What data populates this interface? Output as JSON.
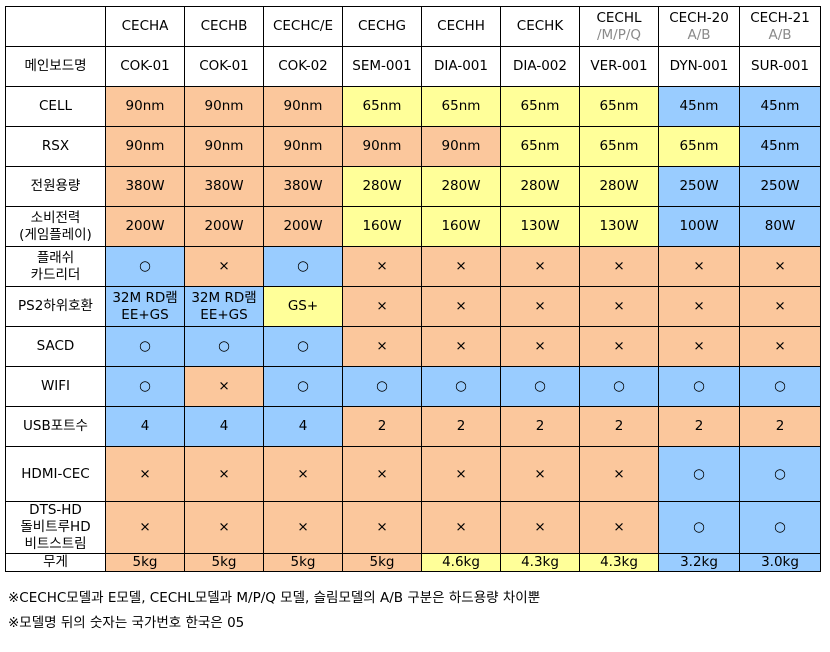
{
  "header": {
    "models": [
      {
        "name": "CECHA",
        "sub": ""
      },
      {
        "name": "CECHB",
        "sub": ""
      },
      {
        "name": "CECHC/E",
        "sub": ""
      },
      {
        "name": "CECHG",
        "sub": ""
      },
      {
        "name": "CECHH",
        "sub": ""
      },
      {
        "name": "CECHK",
        "sub": ""
      },
      {
        "name": "CECHL",
        "sub": "/M/P/Q"
      },
      {
        "name": "CECH-20",
        "sub": "A/B"
      },
      {
        "name": "CECH-21",
        "sub": "A/B"
      }
    ]
  },
  "rows": [
    {
      "label": [
        "메인보드명"
      ],
      "cells": [
        {
          "text": [
            "COK-01"
          ],
          "color": "w"
        },
        {
          "text": [
            "COK-01"
          ],
          "color": "w"
        },
        {
          "text": [
            "COK-02"
          ],
          "color": "w"
        },
        {
          "text": [
            "SEM-001"
          ],
          "color": "w"
        },
        {
          "text": [
            "DIA-001"
          ],
          "color": "w"
        },
        {
          "text": [
            "DIA-002"
          ],
          "color": "w"
        },
        {
          "text": [
            "VER-001"
          ],
          "color": "w"
        },
        {
          "text": [
            "DYN-001"
          ],
          "color": "w"
        },
        {
          "text": [
            "SUR-001"
          ],
          "color": "w"
        }
      ]
    },
    {
      "label": [
        "CELL"
      ],
      "cells": [
        {
          "text": [
            "90nm"
          ],
          "color": "o"
        },
        {
          "text": [
            "90nm"
          ],
          "color": "o"
        },
        {
          "text": [
            "90nm"
          ],
          "color": "o"
        },
        {
          "text": [
            "65nm"
          ],
          "color": "y"
        },
        {
          "text": [
            "65nm"
          ],
          "color": "y"
        },
        {
          "text": [
            "65nm"
          ],
          "color": "y"
        },
        {
          "text": [
            "65nm"
          ],
          "color": "y"
        },
        {
          "text": [
            "45nm"
          ],
          "color": "b"
        },
        {
          "text": [
            "45nm"
          ],
          "color": "b"
        }
      ]
    },
    {
      "label": [
        "RSX"
      ],
      "cells": [
        {
          "text": [
            "90nm"
          ],
          "color": "o"
        },
        {
          "text": [
            "90nm"
          ],
          "color": "o"
        },
        {
          "text": [
            "90nm"
          ],
          "color": "o"
        },
        {
          "text": [
            "90nm"
          ],
          "color": "o"
        },
        {
          "text": [
            "90nm"
          ],
          "color": "o"
        },
        {
          "text": [
            "65nm"
          ],
          "color": "y"
        },
        {
          "text": [
            "65nm"
          ],
          "color": "y"
        },
        {
          "text": [
            "65nm"
          ],
          "color": "y"
        },
        {
          "text": [
            "45nm"
          ],
          "color": "b"
        }
      ]
    },
    {
      "label": [
        "전원용량"
      ],
      "cells": [
        {
          "text": [
            "380W"
          ],
          "color": "o"
        },
        {
          "text": [
            "380W"
          ],
          "color": "o"
        },
        {
          "text": [
            "380W"
          ],
          "color": "o"
        },
        {
          "text": [
            "280W"
          ],
          "color": "y"
        },
        {
          "text": [
            "280W"
          ],
          "color": "y"
        },
        {
          "text": [
            "280W"
          ],
          "color": "y"
        },
        {
          "text": [
            "280W"
          ],
          "color": "y"
        },
        {
          "text": [
            "250W"
          ],
          "color": "b"
        },
        {
          "text": [
            "250W"
          ],
          "color": "b"
        }
      ]
    },
    {
      "label": [
        "소비전력",
        "(게임플레이)"
      ],
      "cells": [
        {
          "text": [
            "200W"
          ],
          "color": "o"
        },
        {
          "text": [
            "200W"
          ],
          "color": "o"
        },
        {
          "text": [
            "200W"
          ],
          "color": "o"
        },
        {
          "text": [
            "160W"
          ],
          "color": "y"
        },
        {
          "text": [
            "160W"
          ],
          "color": "y"
        },
        {
          "text": [
            "130W"
          ],
          "color": "y"
        },
        {
          "text": [
            "130W"
          ],
          "color": "y"
        },
        {
          "text": [
            "100W"
          ],
          "color": "b"
        },
        {
          "text": [
            "80W"
          ],
          "color": "b"
        }
      ]
    },
    {
      "label": [
        "플래쉬",
        "카드리더"
      ],
      "cells": [
        {
          "text": [
            "○"
          ],
          "color": "b"
        },
        {
          "text": [
            "×"
          ],
          "color": "o"
        },
        {
          "text": [
            "○"
          ],
          "color": "b"
        },
        {
          "text": [
            "×"
          ],
          "color": "o"
        },
        {
          "text": [
            "×"
          ],
          "color": "o"
        },
        {
          "text": [
            "×"
          ],
          "color": "o"
        },
        {
          "text": [
            "×"
          ],
          "color": "o"
        },
        {
          "text": [
            "×"
          ],
          "color": "o"
        },
        {
          "text": [
            "×"
          ],
          "color": "o"
        }
      ]
    },
    {
      "label": [
        "PS2하위호환"
      ],
      "cells": [
        {
          "text": [
            "32M RD램",
            "EE+GS"
          ],
          "color": "b"
        },
        {
          "text": [
            "32M RD램",
            "EE+GS"
          ],
          "color": "b"
        },
        {
          "text": [
            "GS+"
          ],
          "color": "y"
        },
        {
          "text": [
            "×"
          ],
          "color": "o"
        },
        {
          "text": [
            "×"
          ],
          "color": "o"
        },
        {
          "text": [
            "×"
          ],
          "color": "o"
        },
        {
          "text": [
            "×"
          ],
          "color": "o"
        },
        {
          "text": [
            "×"
          ],
          "color": "o"
        },
        {
          "text": [
            "×"
          ],
          "color": "o"
        }
      ]
    },
    {
      "label": [
        "SACD"
      ],
      "cells": [
        {
          "text": [
            "○"
          ],
          "color": "b"
        },
        {
          "text": [
            "○"
          ],
          "color": "b"
        },
        {
          "text": [
            "○"
          ],
          "color": "b"
        },
        {
          "text": [
            "×"
          ],
          "color": "o"
        },
        {
          "text": [
            "×"
          ],
          "color": "o"
        },
        {
          "text": [
            "×"
          ],
          "color": "o"
        },
        {
          "text": [
            "×"
          ],
          "color": "o"
        },
        {
          "text": [
            "×"
          ],
          "color": "o"
        },
        {
          "text": [
            "×"
          ],
          "color": "o"
        }
      ]
    },
    {
      "label": [
        "WIFI"
      ],
      "cells": [
        {
          "text": [
            "○"
          ],
          "color": "b"
        },
        {
          "text": [
            "×"
          ],
          "color": "o"
        },
        {
          "text": [
            "○"
          ],
          "color": "b"
        },
        {
          "text": [
            "○"
          ],
          "color": "b"
        },
        {
          "text": [
            "○"
          ],
          "color": "b"
        },
        {
          "text": [
            "○"
          ],
          "color": "b"
        },
        {
          "text": [
            "○"
          ],
          "color": "b"
        },
        {
          "text": [
            "○"
          ],
          "color": "b"
        },
        {
          "text": [
            "○"
          ],
          "color": "b"
        }
      ]
    },
    {
      "label": [
        "USB포트수"
      ],
      "cells": [
        {
          "text": [
            "4"
          ],
          "color": "b"
        },
        {
          "text": [
            "4"
          ],
          "color": "b"
        },
        {
          "text": [
            "4"
          ],
          "color": "b"
        },
        {
          "text": [
            "2"
          ],
          "color": "o"
        },
        {
          "text": [
            "2"
          ],
          "color": "o"
        },
        {
          "text": [
            "2"
          ],
          "color": "o"
        },
        {
          "text": [
            "2"
          ],
          "color": "o"
        },
        {
          "text": [
            "2"
          ],
          "color": "o"
        },
        {
          "text": [
            "2"
          ],
          "color": "o"
        }
      ]
    },
    {
      "label": [
        "HDMI-CEC"
      ],
      "cells": [
        {
          "text": [
            "×"
          ],
          "color": "o"
        },
        {
          "text": [
            "×"
          ],
          "color": "o"
        },
        {
          "text": [
            "×"
          ],
          "color": "o"
        },
        {
          "text": [
            "×"
          ],
          "color": "o"
        },
        {
          "text": [
            "×"
          ],
          "color": "o"
        },
        {
          "text": [
            "×"
          ],
          "color": "o"
        },
        {
          "text": [
            "×"
          ],
          "color": "o"
        },
        {
          "text": [
            "○"
          ],
          "color": "b"
        },
        {
          "text": [
            "○"
          ],
          "color": "b"
        }
      ]
    },
    {
      "label": [
        "DTS-HD",
        "돌비트루HD",
        "비트스트림"
      ],
      "cells": [
        {
          "text": [
            "×"
          ],
          "color": "o"
        },
        {
          "text": [
            "×"
          ],
          "color": "o"
        },
        {
          "text": [
            "×"
          ],
          "color": "o"
        },
        {
          "text": [
            "×"
          ],
          "color": "o"
        },
        {
          "text": [
            "×"
          ],
          "color": "o"
        },
        {
          "text": [
            "×"
          ],
          "color": "o"
        },
        {
          "text": [
            "×"
          ],
          "color": "o"
        },
        {
          "text": [
            "○"
          ],
          "color": "b"
        },
        {
          "text": [
            "○"
          ],
          "color": "b"
        }
      ]
    },
    {
      "label": [
        "무게"
      ],
      "cells": [
        {
          "text": [
            "5kg"
          ],
          "color": "o"
        },
        {
          "text": [
            "5kg"
          ],
          "color": "o"
        },
        {
          "text": [
            "5kg"
          ],
          "color": "o"
        },
        {
          "text": [
            "5kg"
          ],
          "color": "o"
        },
        {
          "text": [
            "4.6kg"
          ],
          "color": "y"
        },
        {
          "text": [
            "4.3kg"
          ],
          "color": "y"
        },
        {
          "text": [
            "4.3kg"
          ],
          "color": "y"
        },
        {
          "text": [
            "3.2kg"
          ],
          "color": "b"
        },
        {
          "text": [
            "3.0kg"
          ],
          "color": "b"
        }
      ]
    }
  ],
  "notes": [
    "※CECHC모델과 E모델, CECHL모델과 M/P/Q 모델, 슬림모델의 A/B 구분은 하드용량 차이뿐",
    "※모델명 뒤의 숫자는 국가번호 한국은 05"
  ],
  "colors": {
    "o": "#fbc79c",
    "y": "#ffff99",
    "b": "#99ccff",
    "w": "#ffffff"
  }
}
